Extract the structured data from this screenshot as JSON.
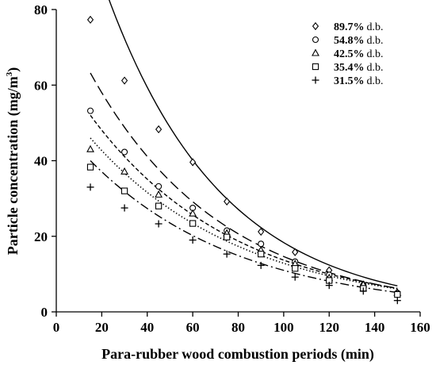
{
  "chart_data": {
    "type": "scatter",
    "xlabel": "Para-rubber wood combustion periods (min)",
    "ylabel_main": "Particle concentration (mg/m",
    "ylabel_sup": "3",
    "ylabel_close": ")",
    "xlim": [
      0,
      160
    ],
    "ylim": [
      0,
      80
    ],
    "xticks": [
      0,
      20,
      40,
      60,
      80,
      100,
      120,
      140,
      160
    ],
    "yticks": [
      0,
      20,
      40,
      60,
      80
    ],
    "grid": false,
    "legend_position": "top-right",
    "x": [
      15,
      30,
      45,
      60,
      75,
      90,
      105,
      120,
      135,
      150
    ],
    "series": [
      {
        "name": "89.7%",
        "unit": "d.b.",
        "marker": "diamond",
        "line": "solid",
        "values": [
          77.3,
          61.2,
          48.3,
          39.6,
          29.2,
          21.2,
          15.8,
          11.0,
          7.2,
          5.0
        ],
        "fit": {
          "a": 97.0,
          "k": 0.0196
        }
      },
      {
        "name": "54.8%",
        "unit": "d.b.",
        "marker": "circle",
        "line": "long-dash",
        "values": [
          53.2,
          42.3,
          33.2,
          27.5,
          21.5,
          18.0,
          13.3,
          9.8,
          7.0,
          5.0
        ],
        "fit": {
          "a": 63.2,
          "k": 0.0172
        }
      },
      {
        "name": "42.5%",
        "unit": "d.b.",
        "marker": "triangle",
        "line": "short-dash",
        "values": [
          43.0,
          37.1,
          31.0,
          26.0,
          20.8,
          16.3,
          12.7,
          9.0,
          7.2,
          5.0
        ],
        "fit": {
          "a": 52.0,
          "k": 0.0157
        }
      },
      {
        "name": "35.4%",
        "unit": "d.b.",
        "marker": "square",
        "line": "dotted",
        "values": [
          38.3,
          32.0,
          28.0,
          23.4,
          19.8,
          15.3,
          11.5,
          8.3,
          6.2,
          4.6
        ],
        "fit": {
          "a": 46.0,
          "k": 0.015
        }
      },
      {
        "name": "31.5%",
        "unit": "d.b.",
        "marker": "plus",
        "line": "dash-dot",
        "values": [
          33.0,
          27.5,
          23.3,
          19.0,
          15.3,
          12.3,
          9.2,
          7.0,
          5.5,
          3.0
        ],
        "fit": {
          "a": 40.0,
          "k": 0.0152
        }
      }
    ]
  }
}
